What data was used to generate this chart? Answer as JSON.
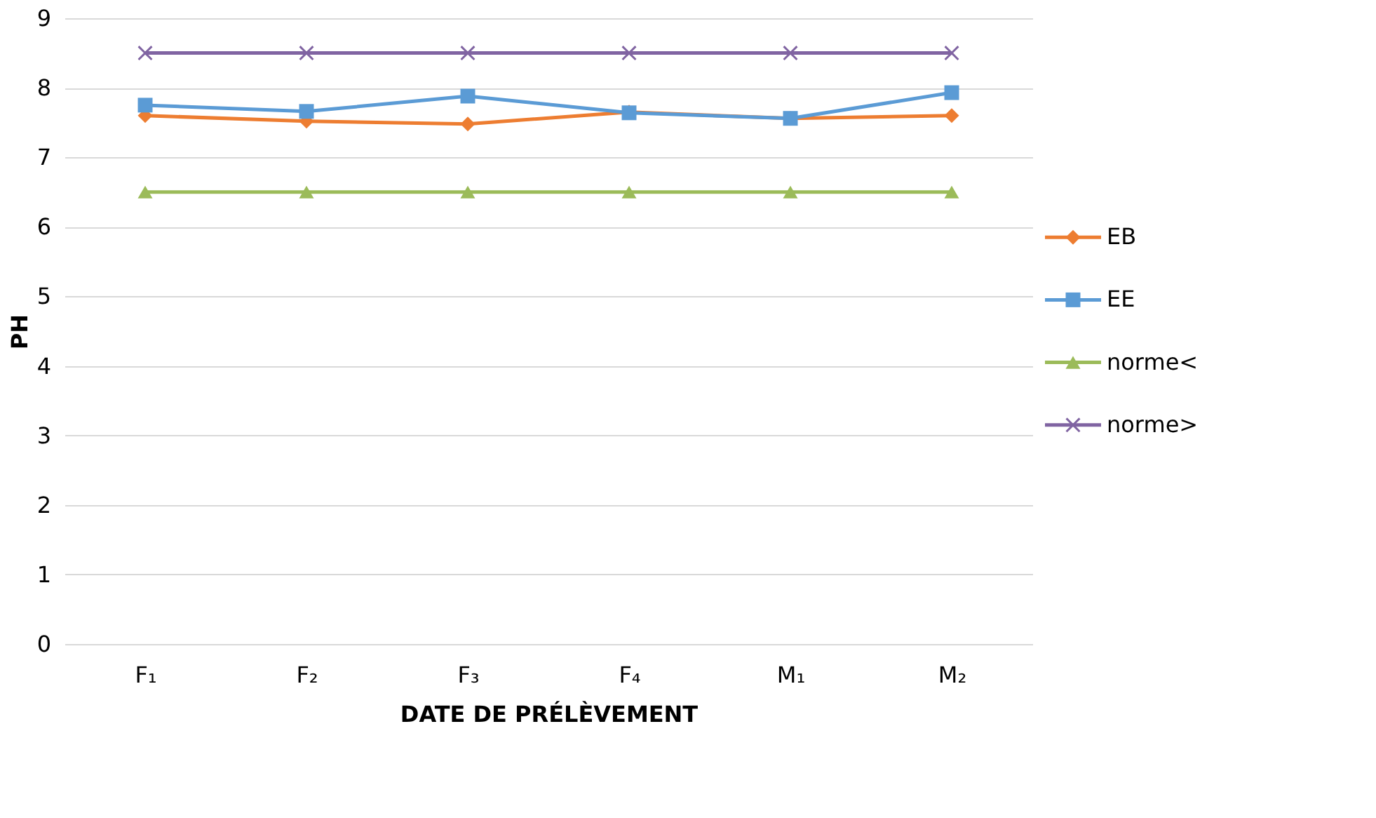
{
  "chart_data": {
    "type": "line",
    "xlabel": "DATE DE PRÉLÈVEMENT",
    "ylabel": "PH",
    "categories": [
      "F₁",
      "F₂",
      "F₃",
      "F₄",
      "M₁",
      "M₂"
    ],
    "series": [
      {
        "name": "EB",
        "color": "#ed7d31",
        "marker": "diamond",
        "values": [
          7.6,
          7.52,
          7.48,
          7.65,
          7.56,
          7.6
        ]
      },
      {
        "name": "EE",
        "color": "#5b9bd5",
        "marker": "square",
        "values": [
          7.75,
          7.66,
          7.88,
          7.64,
          7.56,
          7.93
        ]
      },
      {
        "name": "norme<",
        "color": "#9bbb59",
        "marker": "triangle",
        "values": [
          6.5,
          6.5,
          6.5,
          6.5,
          6.5,
          6.5
        ]
      },
      {
        "name": "norme>",
        "color": "#8064a2",
        "marker": "cross",
        "values": [
          8.5,
          8.5,
          8.5,
          8.5,
          8.5,
          8.5
        ]
      }
    ],
    "ylim": [
      0,
      9
    ],
    "yticks": [
      0,
      1,
      2,
      3,
      4,
      5,
      6,
      7,
      8,
      9
    ],
    "grid": "y",
    "legend": "right"
  }
}
